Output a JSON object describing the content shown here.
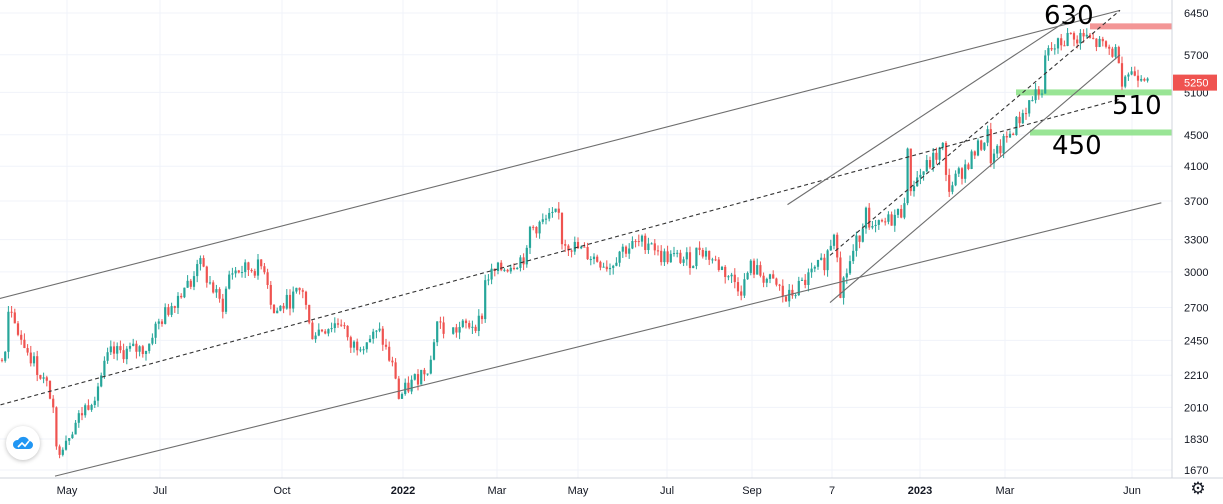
{
  "chart_data": {
    "type": "candlestick",
    "y_axis": {
      "scale": "log",
      "ticks": [
        6450,
        5700,
        5100,
        4500,
        4100,
        3700,
        3300,
        3000,
        2700,
        2450,
        2210,
        2010,
        1830,
        1670
      ],
      "tick_labels": [
        "6450",
        "5700",
        "5100",
        "4500",
        "4100",
        "3700",
        "3300",
        "3000",
        "2700",
        "2450",
        "2210",
        "2010",
        "1830",
        "1670"
      ],
      "range": [
        1640,
        6650
      ]
    },
    "x_axis": {
      "tick_labels": [
        "May",
        "Jul",
        "Oct",
        "2022",
        "Mar",
        "May",
        "Jul",
        "Sep",
        "7",
        "2023",
        "Mar",
        "Jun"
      ],
      "bold_labels": [
        "2022",
        "2023"
      ]
    },
    "grid": true,
    "last_price": {
      "value": 5250,
      "label": "5250",
      "color": "#ef5350"
    },
    "annotations": [
      "630",
      "510",
      "450"
    ],
    "horizontal_levels": [
      {
        "label": "630",
        "value": 6200,
        "color": "#f28b8b"
      },
      {
        "label": "510",
        "value": 5100,
        "color": "#8ee28a"
      },
      {
        "label": "450",
        "value": 4530,
        "color": "#8ee28a"
      }
    ],
    "trend_lines": [
      {
        "style": "solid",
        "from": [
          "2021-03",
          2690
        ],
        "to": [
          "2023-06",
          6500
        ]
      },
      {
        "style": "solid",
        "from": [
          "2021-05",
          1640
        ],
        "to": [
          "2023-07",
          3680
        ]
      },
      {
        "style": "dashed",
        "from": [
          "2021-03",
          1960
        ],
        "to": [
          "2023-06",
          5000
        ]
      },
      {
        "style": "solid",
        "from": [
          "2022-10",
          3660
        ],
        "to": [
          "2023-05",
          6450
        ]
      },
      {
        "style": "solid",
        "from": [
          "2022-11",
          2740
        ],
        "to": [
          "2023-06",
          5700
        ]
      },
      {
        "style": "dashed",
        "from": [
          "2022-11",
          3150
        ],
        "to": [
          "2023-06",
          6500
        ]
      }
    ],
    "price_path": [
      [
        "2021-03",
        2350
      ],
      [
        "2021-04",
        2650
      ],
      [
        "2021-04",
        2600
      ],
      [
        "2021-04",
        2150
      ],
      [
        "2021-05",
        2050
      ],
      [
        "2021-05",
        1750
      ],
      [
        "2021-06",
        2100
      ],
      [
        "2021-06",
        2350
      ],
      [
        "2021-07",
        2500
      ],
      [
        "2021-07",
        2400
      ],
      [
        "2021-08",
        2900
      ],
      [
        "2021-08",
        3150
      ],
      [
        "2021-08",
        2850
      ],
      [
        "2021-09",
        2700
      ],
      [
        "2021-09",
        3000
      ],
      [
        "2021-10",
        3050
      ],
      [
        "2021-10",
        2650
      ],
      [
        "2021-11",
        2850
      ],
      [
        "2021-11",
        2500
      ],
      [
        "2021-12",
        2400
      ],
      [
        "2021-12",
        2600
      ],
      [
        "2022-01",
        2500
      ],
      [
        "2022-01",
        2200
      ],
      [
        "2022-01",
        2050
      ],
      [
        "2022-02",
        2300
      ],
      [
        "2022-02",
        2600
      ],
      [
        "2022-02",
        2500
      ],
      [
        "2022-03",
        2600
      ],
      [
        "2022-03",
        2950
      ],
      [
        "2022-04",
        3150
      ],
      [
        "2022-04",
        3400
      ],
      [
        "2022-05",
        3300
      ],
      [
        "2022-05",
        3550
      ],
      [
        "2022-06",
        3200
      ],
      [
        "2022-06",
        3050
      ],
      [
        "2022-07",
        3300
      ],
      [
        "2022-07",
        3150
      ],
      [
        "2022-08",
        3250
      ],
      [
        "2022-08",
        3100
      ],
      [
        "2022-09",
        3050
      ],
      [
        "2022-09",
        2850
      ],
      [
        "2022-10",
        2750
      ],
      [
        "2022-10",
        2850
      ],
      [
        "2022-11",
        2780
      ],
      [
        "2022-11",
        3100
      ],
      [
        "2022-11",
        3500
      ],
      [
        "2022-12",
        3800
      ],
      [
        "2022-12",
        3450
      ],
      [
        "2022-12",
        3350
      ],
      [
        "2023-01",
        3600
      ],
      [
        "2023-01",
        3850
      ],
      [
        "2023-01",
        4250
      ],
      [
        "2023-02",
        4350
      ],
      [
        "2023-02",
        3950
      ],
      [
        "2023-02",
        3850
      ],
      [
        "2023-03",
        4200
      ],
      [
        "2023-03",
        4500
      ],
      [
        "2023-03",
        4200
      ],
      [
        "2023-04",
        4700
      ],
      [
        "2023-04",
        5200
      ],
      [
        "2023-04",
        5700
      ],
      [
        "2023-05",
        6100
      ],
      [
        "2023-05",
        5800
      ],
      [
        "2023-05",
        6050
      ],
      [
        "2023-06",
        5700
      ],
      [
        "2023-06",
        5400
      ],
      [
        "2023-06",
        5250
      ]
    ],
    "colors": {
      "up": "#26a69a",
      "down": "#ef5350",
      "line": "#6e6e6e"
    }
  },
  "ui": {
    "logo_icon": "cloud-icon",
    "settings_icon": "gear-icon"
  }
}
